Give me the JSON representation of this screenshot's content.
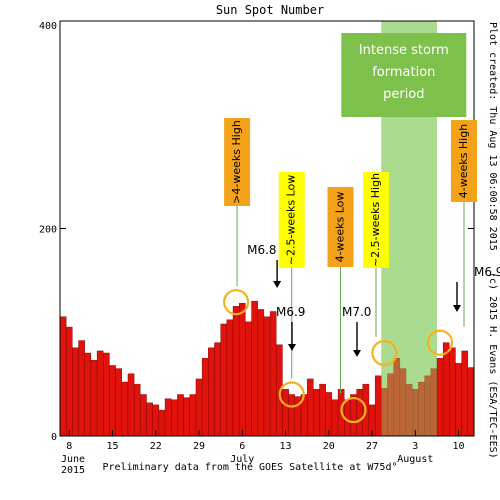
{
  "chart_data": {
    "type": "bar",
    "title": "Sun Spot Number",
    "ylim": [
      0,
      400
    ],
    "yticks": [
      0,
      200,
      400
    ],
    "x_start": "2015-06-07",
    "x_end": "2015-08-12",
    "xticks": [
      {
        "date": "2015-06-08",
        "label": "8"
      },
      {
        "date": "2015-06-15",
        "label": "15"
      },
      {
        "date": "2015-06-22",
        "label": "22"
      },
      {
        "date": "2015-06-29",
        "label": "29"
      },
      {
        "date": "2015-07-06",
        "label": "6"
      },
      {
        "date": "2015-07-13",
        "label": "13"
      },
      {
        "date": "2015-07-20",
        "label": "20"
      },
      {
        "date": "2015-07-27",
        "label": "27"
      },
      {
        "date": "2015-08-03",
        "label": "3"
      },
      {
        "date": "2015-08-10",
        "label": "10"
      }
    ],
    "month_labels": [
      {
        "date": "2015-06-08",
        "label": "June"
      },
      {
        "date": "2015-06-08",
        "label": "2015"
      },
      {
        "date": "2015-07-06",
        "label": "July"
      },
      {
        "date": "2015-08-03",
        "label": "August"
      }
    ],
    "dates": [
      "2015-06-07",
      "2015-06-08",
      "2015-06-09",
      "2015-06-10",
      "2015-06-11",
      "2015-06-12",
      "2015-06-13",
      "2015-06-14",
      "2015-06-15",
      "2015-06-16",
      "2015-06-17",
      "2015-06-18",
      "2015-06-19",
      "2015-06-20",
      "2015-06-21",
      "2015-06-22",
      "2015-06-23",
      "2015-06-24",
      "2015-06-25",
      "2015-06-26",
      "2015-06-27",
      "2015-06-28",
      "2015-06-29",
      "2015-06-30",
      "2015-07-01",
      "2015-07-02",
      "2015-07-03",
      "2015-07-04",
      "2015-07-05",
      "2015-07-06",
      "2015-07-07",
      "2015-07-08",
      "2015-07-09",
      "2015-07-10",
      "2015-07-11",
      "2015-07-12",
      "2015-07-13",
      "2015-07-14",
      "2015-07-15",
      "2015-07-16",
      "2015-07-17",
      "2015-07-18",
      "2015-07-19",
      "2015-07-20",
      "2015-07-21",
      "2015-07-22",
      "2015-07-23",
      "2015-07-24",
      "2015-07-25",
      "2015-07-26",
      "2015-07-27",
      "2015-07-28",
      "2015-07-29",
      "2015-07-30",
      "2015-07-31",
      "2015-08-01",
      "2015-08-02",
      "2015-08-03",
      "2015-08-04",
      "2015-08-05",
      "2015-08-06",
      "2015-08-07",
      "2015-08-08",
      "2015-08-09",
      "2015-08-10",
      "2015-08-11",
      "2015-08-12"
    ],
    "values": [
      115,
      105,
      85,
      92,
      80,
      73,
      82,
      80,
      68,
      65,
      52,
      60,
      50,
      40,
      32,
      30,
      25,
      36,
      35,
      40,
      37,
      40,
      55,
      75,
      85,
      90,
      108,
      112,
      125,
      128,
      110,
      130,
      122,
      115,
      120,
      88,
      45,
      40,
      38,
      40,
      55,
      45,
      50,
      42,
      35,
      45,
      35,
      40,
      45,
      50,
      30,
      58,
      46,
      60,
      75,
      65,
      50,
      45,
      52,
      58,
      65,
      75,
      90,
      85,
      70,
      82,
      66
    ]
  },
  "highlight": {
    "start": "2015-07-29",
    "end": "2015-08-06",
    "label": [
      "Intense storm",
      "formation",
      "period"
    ]
  },
  "annotations": [
    {
      "date": "2015-07-05",
      "value": 129,
      "text": ">4-weeks High",
      "style": "high",
      "flare": "M6.8"
    },
    {
      "date": "2015-07-14",
      "value": 40,
      "text": "~2.5-weeks Low",
      "style": "low",
      "flare": "M6.9"
    },
    {
      "date": "2015-07-24",
      "value": 25,
      "text": "4-weeks Low",
      "style": "low",
      "flare": "M7.0"
    },
    {
      "date": "2015-07-29",
      "value": 80,
      "text": "~2.5-weeks High",
      "style": "yellow",
      "flare": ""
    },
    {
      "date": "2015-08-07",
      "value": 90,
      "text": "4-weeks High",
      "style": "high",
      "flare": "M6.9"
    }
  ],
  "side_text": {
    "right": "Plot created: Thu Aug 13 06:00:58 2015",
    "bottom": "(c) 2015 H. Evans (ESA/TEC-EES)"
  },
  "footer": "Preliminary data from the GOES Satellite at W75d°",
  "colors": {
    "bar": "#e0120c",
    "highlight": "#8fcf6a",
    "orange": "#f5a21b",
    "yellow": "#ffff00",
    "circle": "#f5b21e"
  }
}
